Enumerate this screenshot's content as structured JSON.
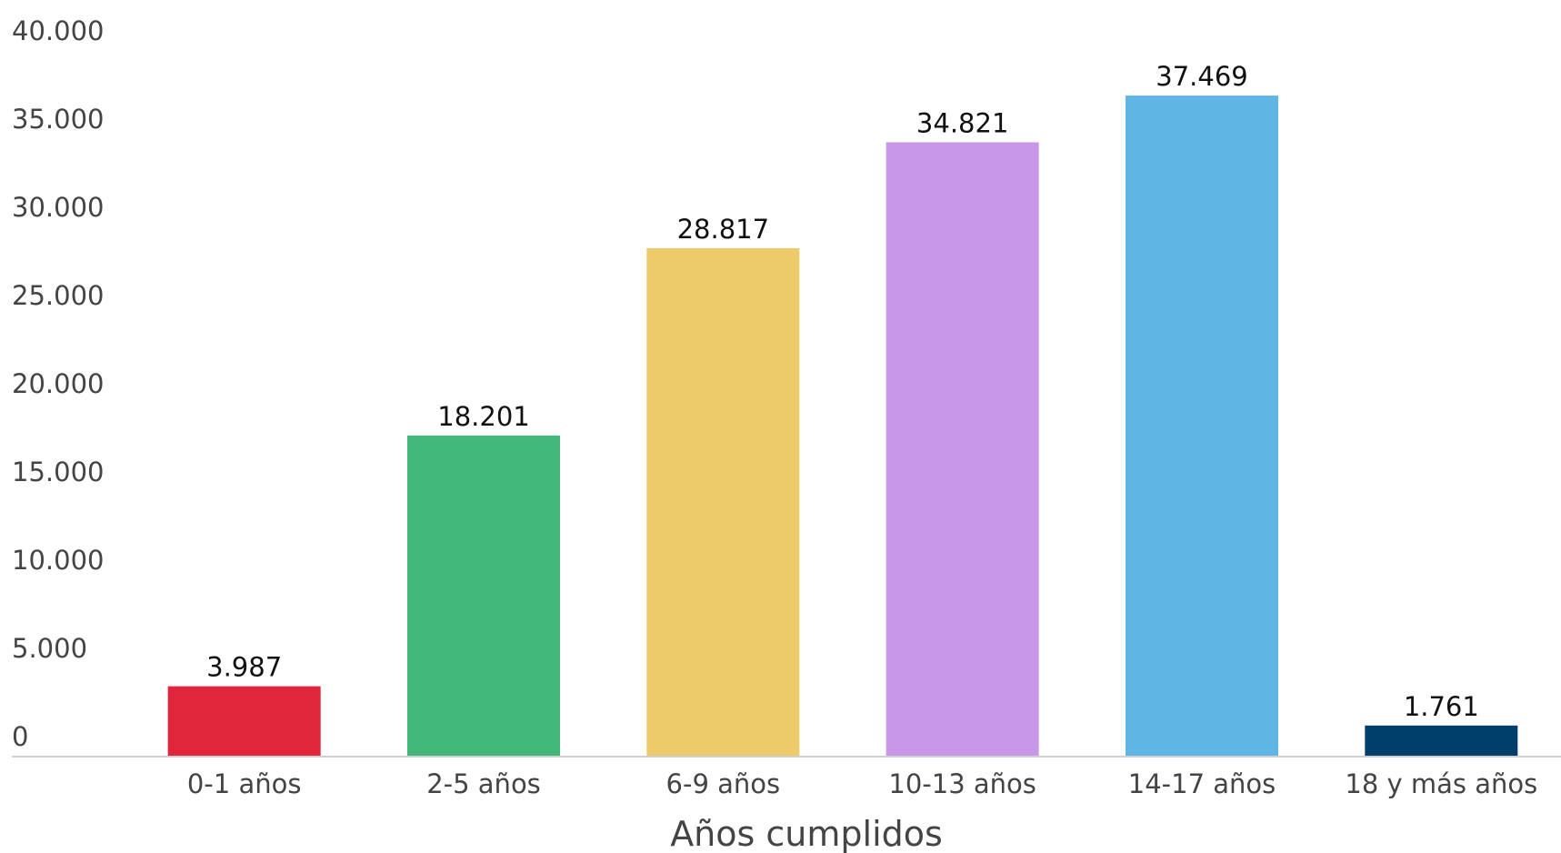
{
  "chart_data": {
    "type": "bar",
    "title": "",
    "xlabel": "Años cumplidos",
    "ylabel": "",
    "categories": [
      "0-1 años",
      "2-5 años",
      "6-9 años",
      "10-13 años",
      "14-17 años",
      "18 y más años"
    ],
    "values": [
      3987,
      18201,
      28817,
      34821,
      37469,
      1761
    ],
    "value_labels": [
      "3.987",
      "18.201",
      "28.817",
      "34.821",
      "37.469",
      "1.761"
    ],
    "colors": [
      "#e0263b",
      "#41b87a",
      "#eecb6a",
      "#c997e8",
      "#5fb6e4",
      "#003e6b"
    ],
    "ylim": [
      0,
      40000
    ],
    "yticks": [
      0,
      5000,
      10000,
      15000,
      20000,
      25000,
      30000,
      35000,
      40000
    ],
    "ytick_labels": [
      "0",
      "5.000",
      "10.000",
      "15.000",
      "20.000",
      "25.000",
      "30.000",
      "35.000",
      "40.000"
    ],
    "grid": false,
    "legend": "none"
  }
}
